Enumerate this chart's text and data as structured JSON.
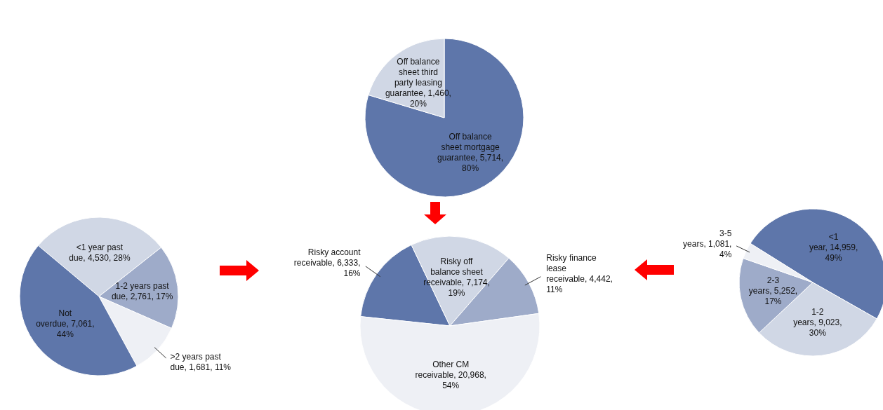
{
  "chart_data": [
    {
      "type": "pie",
      "categories": [
        "<1 year past due",
        "1-2 years past due",
        ">2 years past due",
        "Not overdue"
      ],
      "values": [
        4530,
        2761,
        1681,
        7061
      ],
      "value_labels": [
        "4,530, 28%",
        "2,761, 17%",
        "1,681, 11%",
        "7,061, 44%"
      ],
      "colors": [
        "#d0d7e5",
        "#9eabc9",
        "#eef0f5",
        "#5e76aa"
      ]
    },
    {
      "type": "pie",
      "categories": [
        "Off balance sheet mortgage guarantee",
        "Off balance sheet third party leasing guarantee"
      ],
      "values": [
        5714,
        1460
      ],
      "value_labels": [
        "5,714, 80%",
        "1,460, 20%"
      ],
      "colors": [
        "#5e76aa",
        "#d0d7e5"
      ]
    },
    {
      "type": "pie",
      "categories": [
        "Risky account receivable",
        "Risky off balance sheet receivable",
        "Risky finance lease receivable",
        "Other CM receivable"
      ],
      "values": [
        6333,
        7174,
        4442,
        20968
      ],
      "value_labels": [
        "6,333, 16%",
        "7,174, 19%",
        "4,442, 11%",
        "20,968, 54%"
      ],
      "colors": [
        "#5e76aa",
        "#d0d7e5",
        "#9eabc9",
        "#eef0f5"
      ]
    },
    {
      "type": "pie",
      "categories": [
        "<1 year",
        "1-2 years",
        "2-3 years",
        "3-5 years"
      ],
      "values": [
        14959,
        9023,
        5252,
        1081
      ],
      "value_labels": [
        "14,959, 49%",
        "9,023, 30%",
        "5,252, 17%",
        "1,081, 4%"
      ],
      "colors": [
        "#5e76aa",
        "#d0d7e5",
        "#9eabc9",
        "#eef0f5"
      ]
    }
  ]
}
